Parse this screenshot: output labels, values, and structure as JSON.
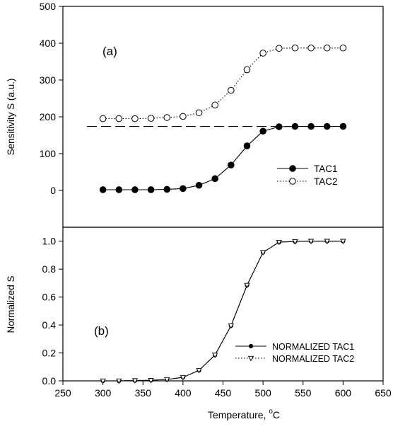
{
  "chart_data": [
    {
      "type": "line",
      "panel_label": "(a)",
      "xlabel": "",
      "ylabel": "Sensitivity S (a.u.)",
      "xlim": [
        250,
        650
      ],
      "ylim": [
        -100,
        500
      ],
      "yticks": [
        0,
        100,
        200,
        300,
        400,
        500
      ],
      "ytick_labels": [
        "0",
        "100",
        "200",
        "300",
        "400",
        "500"
      ],
      "x": [
        300,
        320,
        340,
        360,
        380,
        400,
        420,
        440,
        460,
        480,
        500,
        520,
        540,
        560,
        580,
        600
      ],
      "series": [
        {
          "name": "TAC1",
          "marker": "filled-circle",
          "line": "solid",
          "values": [
            2,
            2,
            2,
            2,
            3,
            5,
            14,
            32,
            69,
            121,
            161,
            173,
            174,
            174,
            174,
            174
          ]
        },
        {
          "name": "TAC2",
          "marker": "open-circle",
          "line": "dotted",
          "values": [
            195,
            195,
            195,
            196,
            198,
            201,
            211,
            232,
            272,
            328,
            373,
            386,
            387,
            387,
            387,
            387
          ]
        }
      ],
      "reference_line": {
        "style": "dashed",
        "y": 174,
        "x_start": 280,
        "x_end": 600
      },
      "legend_position": "lower-right"
    },
    {
      "type": "line",
      "panel_label": "(b)",
      "xlabel": "Temperature, ",
      "xlabel_superscript": "o",
      "xlabel_unit": "C",
      "ylabel": "Normalized S",
      "xlim": [
        250,
        650
      ],
      "ylim": [
        0,
        1.1
      ],
      "xticks": [
        250,
        300,
        350,
        400,
        450,
        500,
        550,
        600,
        650
      ],
      "xtick_labels": [
        "250",
        "300",
        "350",
        "400",
        "450",
        "500",
        "550",
        "600",
        "650"
      ],
      "yticks": [
        0,
        0.2,
        0.4,
        0.6,
        0.8,
        1.0
      ],
      "ytick_labels": [
        "0.0",
        "0.2",
        "0.4",
        "0.6",
        "0.8",
        "1.0"
      ],
      "x": [
        300,
        320,
        340,
        360,
        380,
        400,
        420,
        440,
        460,
        480,
        500,
        520,
        540,
        560,
        580,
        600
      ],
      "series": [
        {
          "name": "NORMALIZED TAC1",
          "marker": "filled-circle-small",
          "line": "solid",
          "values": [
            0,
            0,
            0.002,
            0.004,
            0.01,
            0.025,
            0.075,
            0.185,
            0.395,
            0.685,
            0.92,
            0.993,
            0.998,
            1.0,
            1.0,
            1.0
          ]
        },
        {
          "name": "NORMALIZED TAC2",
          "marker": "open-triangle-down",
          "line": "dotted",
          "values": [
            0,
            0,
            0.002,
            0.004,
            0.01,
            0.025,
            0.075,
            0.185,
            0.395,
            0.685,
            0.92,
            0.993,
            0.998,
            1.0,
            1.0,
            1.0
          ]
        }
      ],
      "legend_position": "lower-right"
    }
  ]
}
